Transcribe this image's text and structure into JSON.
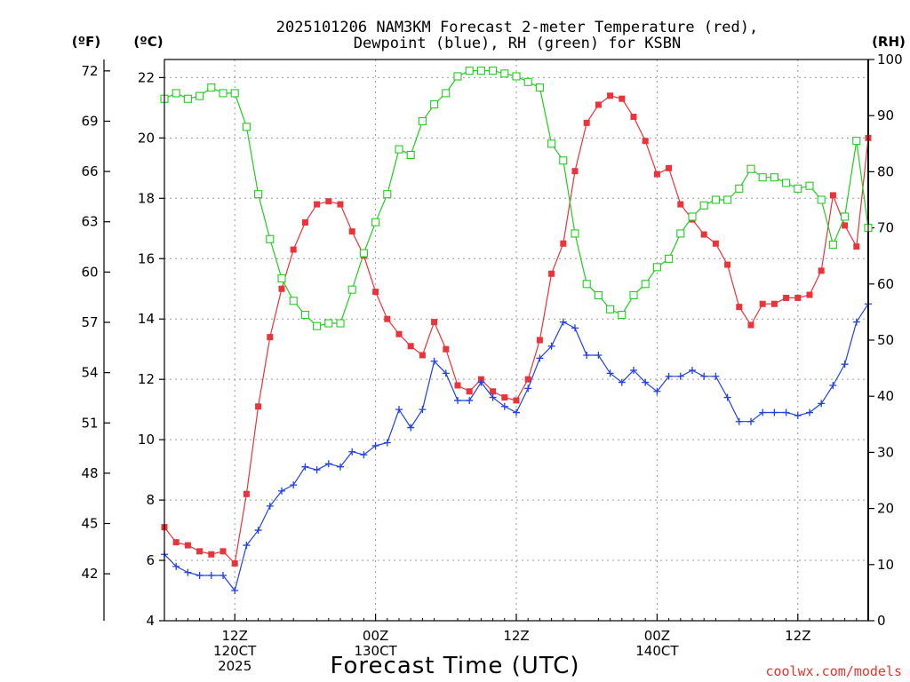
{
  "chart_data": {
    "type": "line",
    "title_line1": "2025101206 NAM3KM Forecast 2-meter Temperature (red),",
    "title_line2": "Dewpoint (blue), RH (green) for KSBN",
    "xlabel": "Forecast Time (UTC)",
    "credit": "coolwx.com/models",
    "x_hours_range": [
      0,
      60
    ],
    "x_ticks": [
      {
        "hour": 6,
        "line1": "12Z",
        "line2": "120CT",
        "line3": "2025"
      },
      {
        "hour": 18,
        "line1": "00Z",
        "line2": "130CT",
        "line3": ""
      },
      {
        "hour": 30,
        "line1": "12Z",
        "line2": "",
        "line3": ""
      },
      {
        "hour": 42,
        "line1": "00Z",
        "line2": "140CT",
        "line3": ""
      },
      {
        "hour": 54,
        "line1": "12Z",
        "line2": "",
        "line3": ""
      }
    ],
    "axes": {
      "celsius": {
        "unit_label": "(ºC)",
        "range": [
          4,
          22.6
        ],
        "ticks": [
          "4",
          "6",
          "8",
          "10",
          "12",
          "14",
          "16",
          "18",
          "20",
          "22"
        ]
      },
      "fahrenheit": {
        "unit_label": "(ºF)",
        "ticks": [
          "42",
          "45",
          "48",
          "51",
          "54",
          "57",
          "60",
          "63",
          "66",
          "69",
          "72"
        ]
      },
      "rh": {
        "unit_label": "(RH)",
        "range": [
          0,
          100
        ],
        "ticks": [
          "0",
          "10",
          "20",
          "30",
          "40",
          "50",
          "60",
          "70",
          "80",
          "90",
          "100"
        ]
      }
    },
    "colors": {
      "temperature": "#e8343a",
      "dewpoint": "#2142e0",
      "rh": "#22cc22"
    },
    "series": [
      {
        "name": "Temperature",
        "unit": "C",
        "color": "#e8343a",
        "values": [
          7.1,
          6.6,
          6.5,
          6.3,
          6.2,
          6.3,
          5.9,
          8.2,
          11.1,
          13.4,
          15.0,
          16.3,
          17.2,
          17.8,
          17.9,
          17.8,
          16.9,
          16.1,
          14.9,
          14.0,
          13.5,
          13.1,
          12.8,
          13.9,
          13.0,
          11.8,
          11.6,
          12.0,
          11.6,
          11.4,
          11.3,
          12.0,
          13.3,
          15.5,
          16.5,
          18.9,
          20.5,
          21.1,
          21.4,
          21.3,
          20.7,
          19.9,
          18.8,
          19.0,
          17.8,
          17.3,
          16.8,
          16.5,
          15.8,
          14.4,
          13.8,
          14.5,
          14.5,
          14.7,
          14.7,
          14.8,
          15.6,
          18.1,
          17.1,
          16.4,
          20.0
        ]
      },
      {
        "name": "Dewpoint",
        "unit": "C",
        "color": "#2142e0",
        "values": [
          6.2,
          5.8,
          5.6,
          5.5,
          5.5,
          5.5,
          5.0,
          6.5,
          7.0,
          7.8,
          8.3,
          8.5,
          9.1,
          9.0,
          9.2,
          9.1,
          9.6,
          9.5,
          9.8,
          9.9,
          11.0,
          10.4,
          11.0,
          12.6,
          12.2,
          11.3,
          11.3,
          11.9,
          11.4,
          11.1,
          10.9,
          11.7,
          12.7,
          13.1,
          13.9,
          13.7,
          12.8,
          12.8,
          12.2,
          11.9,
          12.3,
          11.9,
          11.6,
          12.1,
          12.1,
          12.3,
          12.1,
          12.1,
          11.4,
          10.6,
          10.6,
          10.9,
          10.9,
          10.9,
          10.8,
          10.9,
          11.2,
          11.8,
          12.5,
          13.9,
          14.5
        ]
      },
      {
        "name": "RH",
        "unit": "%",
        "color": "#22cc22",
        "values": [
          93,
          94,
          93,
          93.5,
          95,
          94,
          94,
          88,
          76,
          68,
          61,
          57,
          54.5,
          52.5,
          53,
          53,
          59,
          65.5,
          71,
          76,
          84,
          83,
          89,
          92,
          94,
          97,
          98,
          98,
          98,
          97.5,
          97,
          96,
          95,
          85,
          82,
          69,
          60,
          58,
          55.5,
          54.5,
          58,
          60,
          63,
          64.5,
          69,
          72,
          74,
          75,
          75,
          77,
          80.5,
          79,
          79,
          78,
          77,
          77.5,
          75,
          67,
          72,
          85.5,
          70
        ]
      }
    ]
  }
}
